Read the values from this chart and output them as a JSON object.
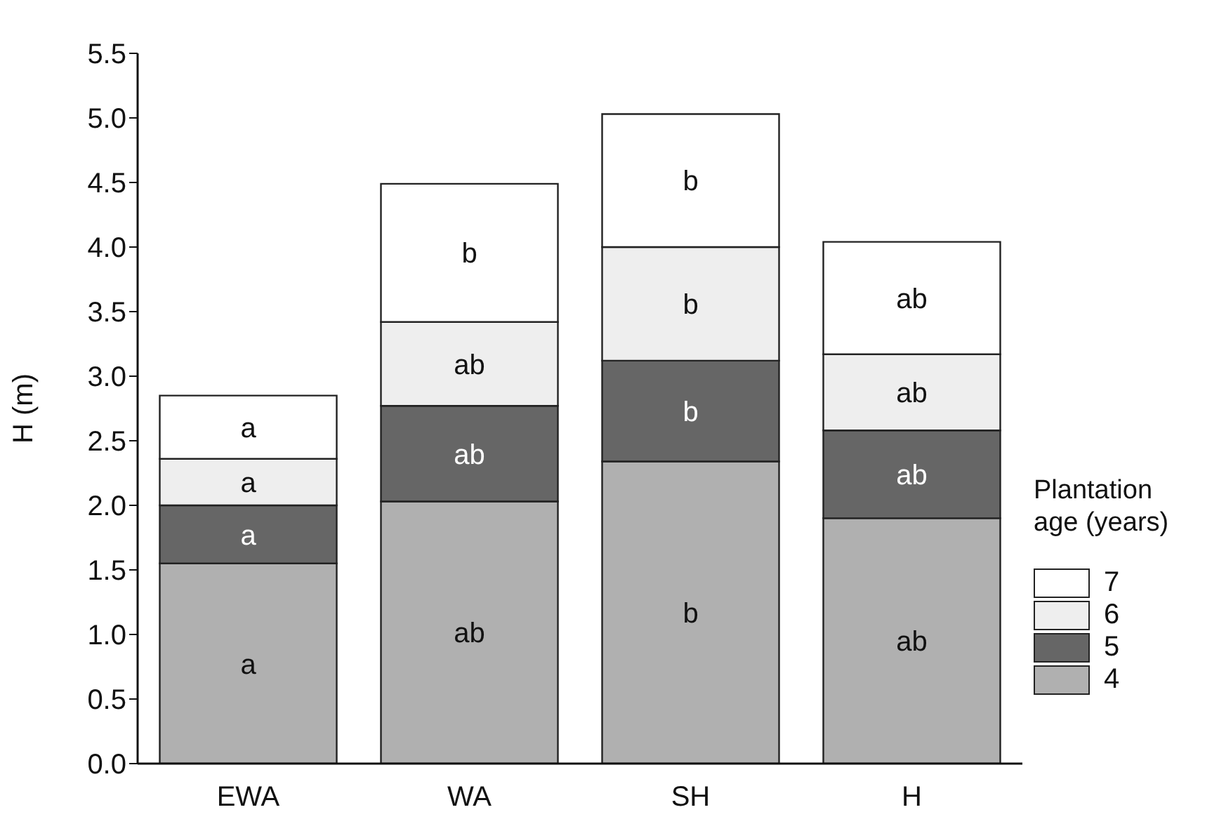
{
  "chart_data": {
    "type": "bar",
    "stacked": true,
    "ylabel": "H (m)",
    "legend_title": "Plantation age (years)",
    "legend": "right",
    "categories": [
      "EWA",
      "WA",
      "SH",
      "H"
    ],
    "series": [
      {
        "name": "4",
        "color": "#b0b0b0",
        "values": [
          1.55,
          2.03,
          2.34,
          1.9
        ],
        "value_labels": [
          "a",
          "ab",
          "b",
          "ab"
        ]
      },
      {
        "name": "5",
        "color": "#666666",
        "values": [
          0.45,
          0.74,
          0.78,
          0.68
        ],
        "value_labels": [
          "a",
          "ab",
          "b",
          "ab"
        ]
      },
      {
        "name": "6",
        "color": "#eeeeee",
        "values": [
          0.36,
          0.65,
          0.88,
          0.59
        ],
        "value_labels": [
          "a",
          "ab",
          "b",
          "ab"
        ]
      },
      {
        "name": "7",
        "color": "#ffffff",
        "values": [
          0.49,
          1.07,
          1.03,
          0.87
        ],
        "value_labels": [
          "a",
          "b",
          "b",
          "ab"
        ]
      }
    ],
    "ylim": [
      0,
      5.5
    ],
    "yticks": [
      {
        "value": 0,
        "label": "0.0"
      },
      0.5,
      {
        "value": 1,
        "label": "1.0"
      },
      1.5,
      {
        "value": 2,
        "label": "2.0"
      },
      2.5,
      {
        "value": 3,
        "label": "3.0"
      },
      3.5,
      {
        "value": 4,
        "label": "4.0"
      },
      4.5,
      {
        "value": 5,
        "label": "5.0"
      },
      5.5
    ],
    "grid": false
  }
}
